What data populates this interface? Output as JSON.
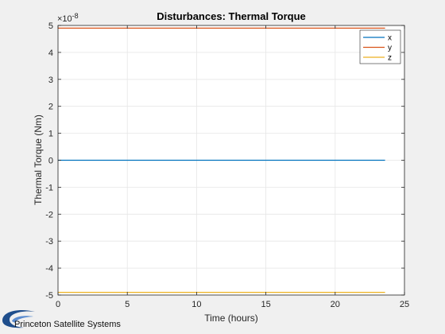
{
  "chart_data": {
    "type": "line",
    "title": "Disturbances: Thermal Torque",
    "xlabel": "Time (hours)",
    "ylabel": "Thermal Torque (Nm)",
    "xlim": [
      0,
      25
    ],
    "ylim": [
      -5,
      5
    ],
    "x_ticks": [
      0,
      5,
      10,
      15,
      20,
      25
    ],
    "y_ticks": [
      -5,
      -4,
      -3,
      -2,
      -1,
      0,
      1,
      2,
      3,
      4,
      5
    ],
    "y_exponent": "×10",
    "y_exponent_power": "-8",
    "grid": true,
    "legend_position": "top-right",
    "series": [
      {
        "name": "x",
        "color": "#0072BD",
        "x": [
          0,
          23.6
        ],
        "y": [
          0,
          0
        ]
      },
      {
        "name": "y",
        "color": "#D95319",
        "x": [
          0,
          23.6
        ],
        "y": [
          4.9,
          4.9
        ]
      },
      {
        "name": "z",
        "color": "#EDB120",
        "x": [
          0,
          23.6
        ],
        "y": [
          -4.9,
          -4.9
        ]
      }
    ]
  },
  "footer": {
    "logo_text": "Princeton Satellite Systems",
    "logo_color": "#1f4e8c"
  }
}
